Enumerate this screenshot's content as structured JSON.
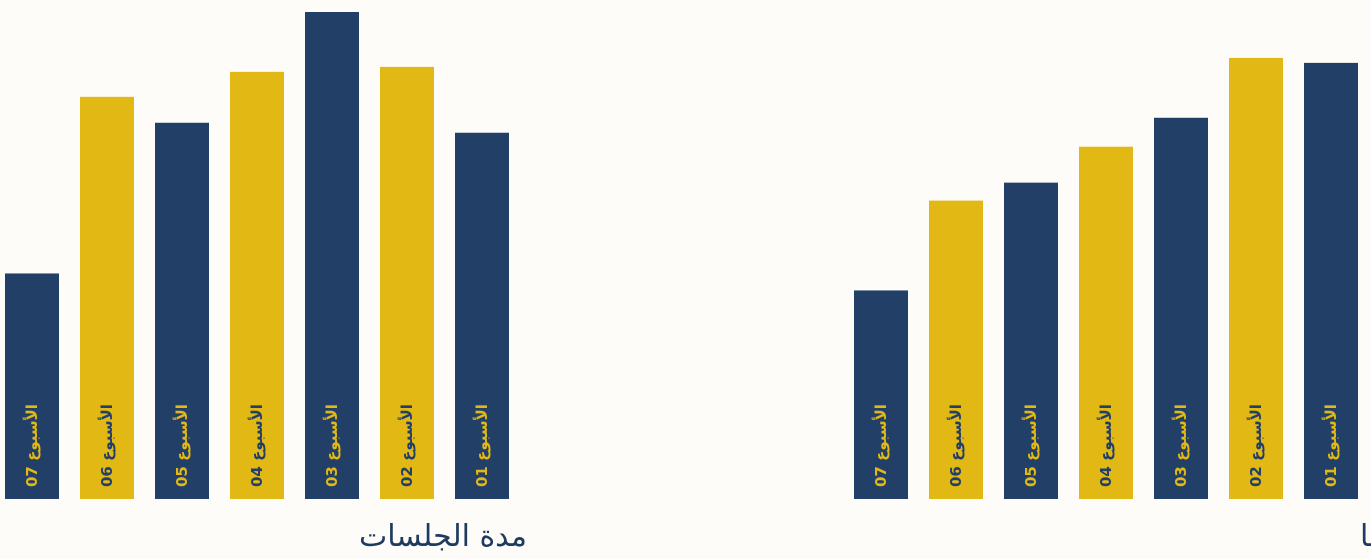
{
  "colors": {
    "navy": "#223f68",
    "gold": "#e2b815",
    "background": "#fdfcf8"
  },
  "chart_data": [
    {
      "type": "bar",
      "title": "مدة الجلسات",
      "categories": [
        "الأسبوع 07",
        "الأسبوع 06",
        "الأسبوع 05",
        "الأسبوع 04",
        "الأسبوع 03",
        "الأسبوع 02",
        "الأسبوع 01"
      ],
      "values": [
        226,
        403,
        377,
        428,
        488,
        433,
        367
      ],
      "bar_colors": [
        "navy",
        "gold",
        "navy",
        "gold",
        "navy",
        "gold",
        "navy"
      ],
      "ylim": [
        0,
        488
      ],
      "grid": false,
      "legend": "none"
    },
    {
      "type": "bar",
      "title": "عدد الجلسات التي تم إنشائها",
      "categories": [
        "الأسبوع 07",
        "الأسبوع 06",
        "الأسبوع 05",
        "الأسبوع 04",
        "الأسبوع 03",
        "الأسبوع 02",
        "الأسبوع 01"
      ],
      "values": [
        209,
        299,
        317,
        353,
        382,
        442,
        437
      ],
      "bar_colors": [
        "navy",
        "gold",
        "navy",
        "gold",
        "navy",
        "gold",
        "navy"
      ],
      "ylim": [
        0,
        488
      ],
      "grid": false,
      "legend": "none"
    }
  ]
}
